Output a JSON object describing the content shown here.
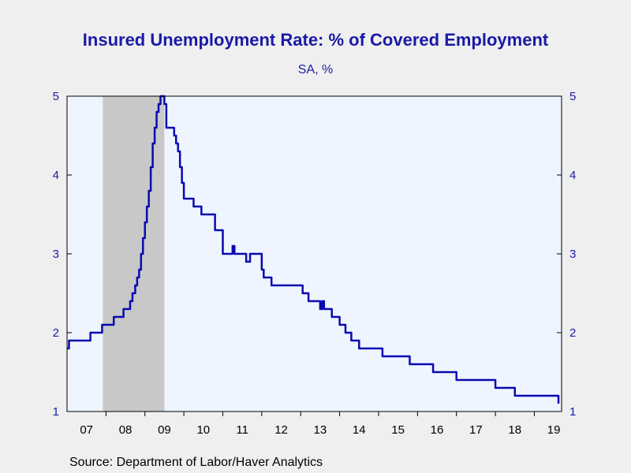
{
  "chart_data": {
    "type": "line",
    "title": "Insured Unemployment Rate: % of Covered Employment",
    "subtitle": "SA, %",
    "source": "Source:  Department of Labor/Haver Analytics",
    "ylim": [
      1,
      5
    ],
    "yticks": [
      1,
      2,
      3,
      4,
      5
    ],
    "x_tick_labels": [
      "07",
      "08",
      "09",
      "10",
      "11",
      "12",
      "13",
      "14",
      "15",
      "16",
      "17",
      "18",
      "19"
    ],
    "x_range": [
      2007.0,
      2019.7
    ],
    "recession_shading": [
      2007.92,
      2009.5
    ],
    "grid": false,
    "dual_y_axis": true,
    "colors": {
      "line": "#0a0ab0",
      "recession": "#c8c8c8",
      "plot_bg": "#eef5ff",
      "text": "#1a1aa6"
    },
    "series": [
      {
        "x": [
          2007.0,
          2007.05,
          2007.1,
          2007.5,
          2007.6,
          2007.75,
          2007.9,
          2008.05,
          2008.2,
          2008.3,
          2008.45,
          2008.55,
          2008.62,
          2008.68,
          2008.75,
          2008.8,
          2008.85,
          2008.9,
          2008.95,
          2009.0,
          2009.05,
          2009.1,
          2009.15,
          2009.2,
          2009.25,
          2009.3,
          2009.35,
          2009.4,
          2009.45,
          2009.5,
          2009.55,
          2009.65,
          2009.75,
          2009.8,
          2009.85,
          2009.9,
          2009.95,
          2010.0,
          2010.05,
          2010.1,
          2010.2,
          2010.25,
          2010.35,
          2010.45,
          2010.6,
          2010.8,
          2011.0,
          2011.2,
          2011.25,
          2011.3,
          2011.6,
          2011.7,
          2012.0,
          2012.05,
          2012.15,
          2012.25,
          2012.5,
          2012.9,
          2013.05,
          2013.2,
          2013.35,
          2013.5,
          2013.55,
          2013.6,
          2013.8,
          2014.0,
          2014.15,
          2014.3,
          2014.5,
          2014.8,
          2015.1,
          2015.5,
          2015.8,
          2016.0,
          2016.2,
          2016.4,
          2016.8,
          2017.0,
          2017.2,
          2017.5,
          2018.0,
          2018.5,
          2019.0,
          2019.3,
          2019.55,
          2019.62
        ],
        "values": [
          1.8,
          1.9,
          1.9,
          1.9,
          2.0,
          2.0,
          2.1,
          2.1,
          2.2,
          2.2,
          2.3,
          2.3,
          2.4,
          2.5,
          2.6,
          2.7,
          2.8,
          3.0,
          3.2,
          3.4,
          3.6,
          3.8,
          4.1,
          4.4,
          4.6,
          4.8,
          4.9,
          5.0,
          5.0,
          4.9,
          4.6,
          4.6,
          4.5,
          4.4,
          4.3,
          4.1,
          3.9,
          3.7,
          3.7,
          3.7,
          3.7,
          3.6,
          3.6,
          3.5,
          3.5,
          3.3,
          3.0,
          3.0,
          3.1,
          3.0,
          2.9,
          3.0,
          2.8,
          2.7,
          2.7,
          2.6,
          2.6,
          2.6,
          2.5,
          2.4,
          2.4,
          2.3,
          2.4,
          2.3,
          2.2,
          2.1,
          2.0,
          1.9,
          1.8,
          1.8,
          1.7,
          1.7,
          1.6,
          1.6,
          1.6,
          1.5,
          1.5,
          1.4,
          1.4,
          1.4,
          1.3,
          1.2,
          1.2,
          1.2,
          1.2,
          1.1
        ]
      }
    ]
  }
}
